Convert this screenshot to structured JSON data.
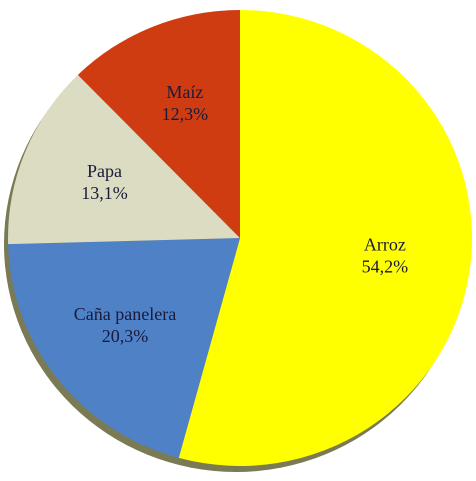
{
  "chart_data": {
    "type": "pie",
    "categories": [
      "Arroz",
      "Caña panelera",
      "Papa",
      "Maíz"
    ],
    "values": [
      54.2,
      20.3,
      13.1,
      12.3
    ],
    "value_labels": [
      "54,2%",
      "20,3%",
      "13,1%",
      "12,3%"
    ],
    "colors": [
      "#ffff00",
      "#4f81c7",
      "#dcdcc2",
      "#d03c12"
    ]
  }
}
